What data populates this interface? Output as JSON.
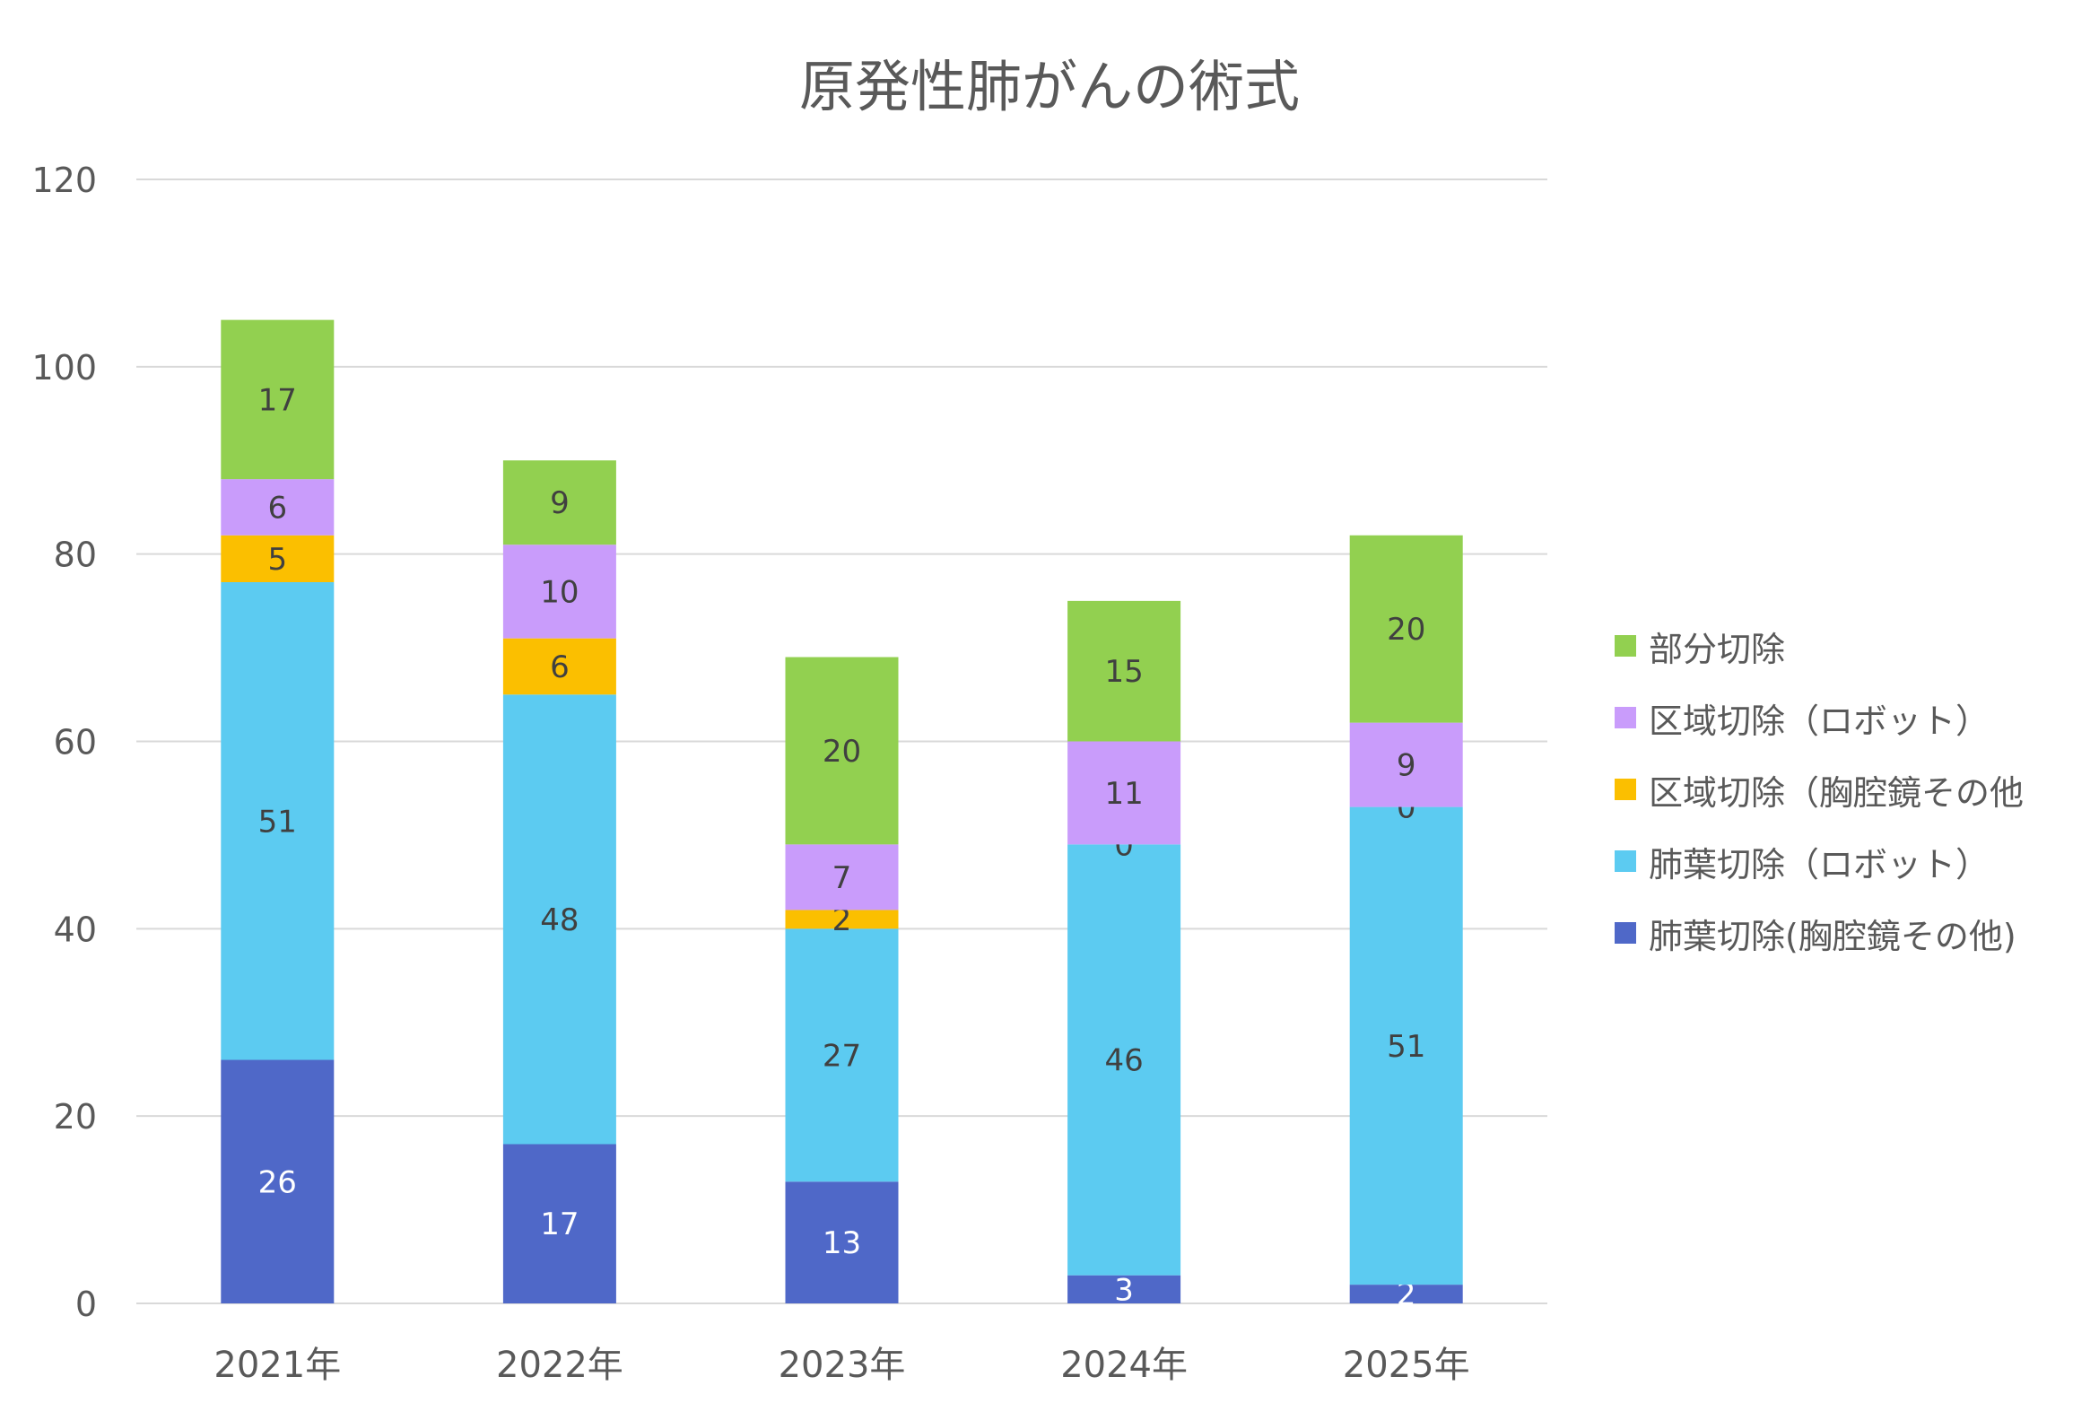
{
  "chart_data": {
    "type": "bar",
    "stacked": true,
    "title": "原発性肺がんの術式",
    "xlabel": "",
    "ylabel": "",
    "categories": [
      "2021年",
      "2022年",
      "2023年",
      "2024年",
      "2025年"
    ],
    "ylim": [
      0,
      120
    ],
    "yticks": [
      "0",
      "20",
      "40",
      "60",
      "80",
      "100",
      "120"
    ],
    "grid": true,
    "legend_position": "right",
    "series": [
      {
        "name": "肺葉切除(胸腔鏡その他)",
        "color": "#4f68c8",
        "label_color": "#ffffff",
        "values": [
          26,
          17,
          13,
          3,
          2
        ]
      },
      {
        "name": "肺葉切除（ロボット）",
        "color": "#5ccbf1",
        "label_color": "#404040",
        "values": [
          51,
          48,
          27,
          46,
          51
        ]
      },
      {
        "name": "区域切除（胸腔鏡その他",
        "color": "#fbbf00",
        "label_color": "#404040",
        "values": [
          5,
          6,
          2,
          0,
          0
        ]
      },
      {
        "name": "区域切除（ロボット）",
        "color": "#c99cfb",
        "label_color": "#404040",
        "values": [
          6,
          10,
          7,
          11,
          9
        ]
      },
      {
        "name": "部分切除",
        "color": "#92d050",
        "label_color": "#404040",
        "values": [
          17,
          9,
          20,
          15,
          20
        ]
      }
    ]
  }
}
